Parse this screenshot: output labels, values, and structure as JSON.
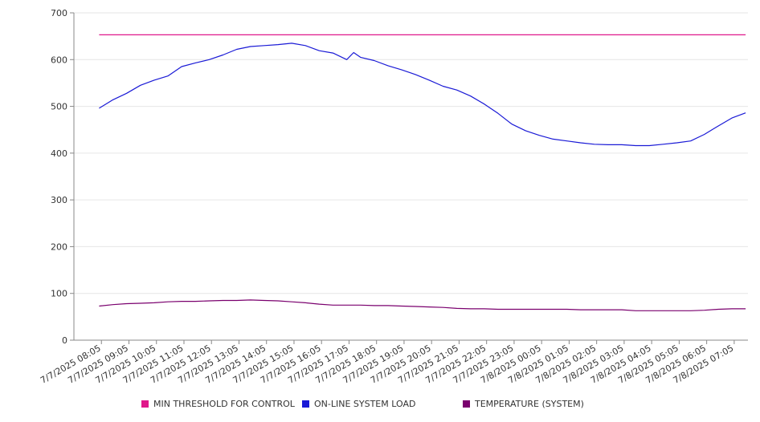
{
  "chart_data": {
    "type": "line",
    "title": "",
    "xlabel": "",
    "ylabel": "",
    "ylim": [
      0,
      700
    ],
    "y_ticks": [
      0,
      100,
      200,
      300,
      400,
      500,
      600,
      700
    ],
    "x_tick_labels": [
      "7/7/2025 08:05",
      "7/7/2025 09:05",
      "7/7/2025 10:05",
      "7/7/2025 11:05",
      "7/7/2025 12:05",
      "7/7/2025 13:05",
      "7/7/2025 14:05",
      "7/7/2025 15:05",
      "7/7/2025 16:05",
      "7/7/2025 17:05",
      "7/7/2025 18:05",
      "7/7/2025 19:05",
      "7/7/2025 20:05",
      "7/7/2025 21:05",
      "7/7/2025 22:05",
      "7/7/2025 23:05",
      "7/8/2025 00:05",
      "7/8/2025 01:05",
      "7/8/2025 02:05",
      "7/8/2025 03:05",
      "7/8/2025 04:05",
      "7/8/2025 05:05",
      "7/8/2025 06:05",
      "7/8/2025 07:05"
    ],
    "x": [
      "7/7/2025 08:00",
      "7/7/2025 08:30",
      "7/7/2025 09:00",
      "7/7/2025 09:30",
      "7/7/2025 10:00",
      "7/7/2025 10:30",
      "7/7/2025 11:00",
      "7/7/2025 11:30",
      "7/7/2025 12:00",
      "7/7/2025 12:30",
      "7/7/2025 13:00",
      "7/7/2025 13:30",
      "7/7/2025 14:00",
      "7/7/2025 14:30",
      "7/7/2025 15:00",
      "7/7/2025 15:30",
      "7/7/2025 16:00",
      "7/7/2025 16:30",
      "7/7/2025 17:00",
      "7/7/2025 17:15",
      "7/7/2025 17:30",
      "7/7/2025 18:00",
      "7/7/2025 18:30",
      "7/7/2025 19:00",
      "7/7/2025 19:30",
      "7/7/2025 20:00",
      "7/7/2025 20:30",
      "7/7/2025 21:00",
      "7/7/2025 21:30",
      "7/7/2025 22:00",
      "7/7/2025 22:30",
      "7/7/2025 23:00",
      "7/7/2025 23:30",
      "7/8/2025 00:00",
      "7/8/2025 00:30",
      "7/8/2025 01:00",
      "7/8/2025 01:30",
      "7/8/2025 02:00",
      "7/8/2025 02:30",
      "7/8/2025 03:00",
      "7/8/2025 03:30",
      "7/8/2025 04:00",
      "7/8/2025 04:30",
      "7/8/2025 05:00",
      "7/8/2025 05:30",
      "7/8/2025 06:00",
      "7/8/2025 06:30",
      "7/8/2025 07:00",
      "7/8/2025 07:30"
    ],
    "series": [
      {
        "name": "MIN THRESHOLD FOR CONTROL",
        "color": "#e0188b",
        "values": [
          653,
          653,
          653,
          653,
          653,
          653,
          653,
          653,
          653,
          653,
          653,
          653,
          653,
          653,
          653,
          653,
          653,
          653,
          653,
          653,
          653,
          653,
          653,
          653,
          653,
          653,
          653,
          653,
          653,
          653,
          653,
          653,
          653,
          653,
          653,
          653,
          653,
          653,
          653,
          653,
          653,
          653,
          653,
          653,
          653,
          653,
          653,
          653,
          653
        ]
      },
      {
        "name": "ON-LINE SYSTEM LOAD",
        "color": "#1a1ad6",
        "values": [
          496,
          514,
          528,
          545,
          556,
          565,
          585,
          593,
          600,
          610,
          622,
          628,
          630,
          632,
          635,
          630,
          619,
          614,
          600,
          615,
          605,
          598,
          587,
          578,
          568,
          556,
          543,
          535,
          522,
          505,
          485,
          462,
          448,
          438,
          430,
          426,
          422,
          419,
          418,
          418,
          416,
          416,
          419,
          422,
          426,
          440,
          458,
          475,
          486
        ]
      },
      {
        "name": "TEMPERATURE (SYSTEM)",
        "color": "#7a006e",
        "values": [
          73,
          76,
          78,
          79,
          80,
          82,
          83,
          83,
          84,
          85,
          85,
          86,
          85,
          84,
          82,
          80,
          77,
          75,
          75,
          75,
          75,
          74,
          74,
          73,
          72,
          71,
          70,
          68,
          67,
          67,
          66,
          66,
          66,
          66,
          66,
          66,
          65,
          65,
          65,
          65,
          63,
          63,
          63,
          63,
          63,
          64,
          66,
          67,
          67
        ]
      }
    ],
    "legend_position": "bottom"
  }
}
